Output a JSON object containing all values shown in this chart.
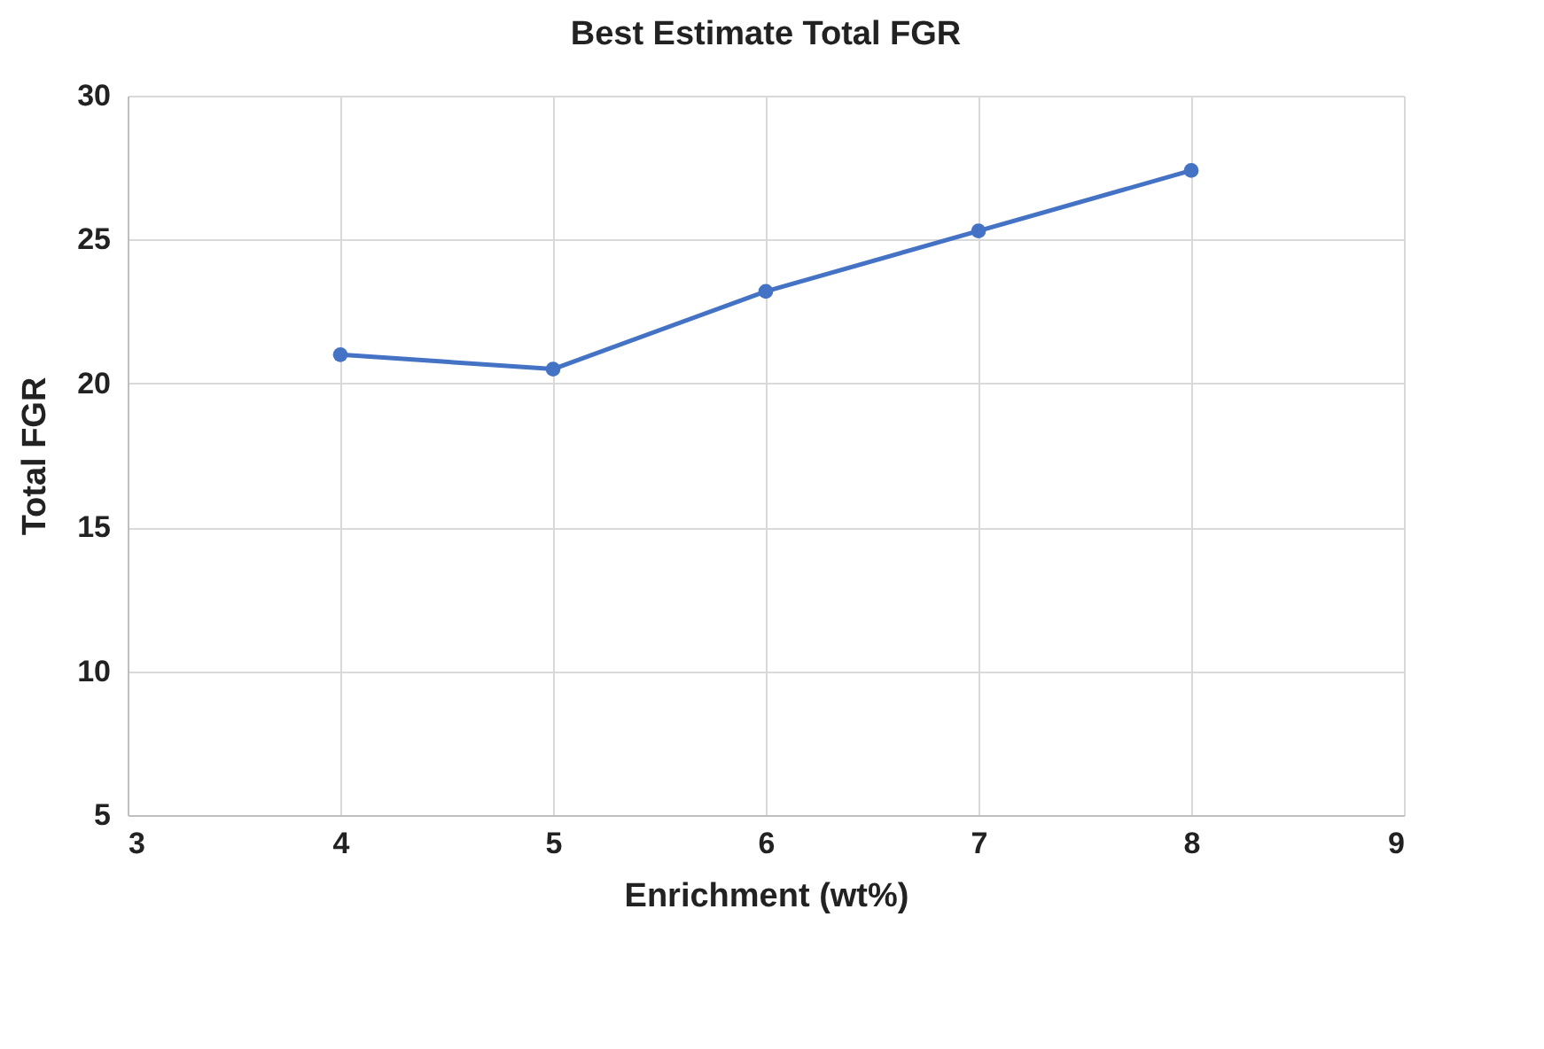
{
  "chart_data": {
    "type": "line",
    "title": "Best Estimate Total FGR",
    "xlabel": "Enrichment (wt%)",
    "ylabel": "Total FGR",
    "x": [
      4,
      5,
      6,
      7,
      8
    ],
    "series": [
      {
        "color": "#4472c4",
        "values": [
          21.0,
          20.5,
          23.2,
          25.3,
          27.4
        ]
      }
    ],
    "xlim": [
      3,
      9
    ],
    "xticks": [
      3,
      4,
      5,
      6,
      7,
      8,
      9
    ],
    "ylim": [
      5,
      30
    ],
    "yticks": [
      5,
      10,
      15,
      20,
      25,
      30
    ],
    "grid": true,
    "marker": "circle",
    "line_style": "solid"
  }
}
